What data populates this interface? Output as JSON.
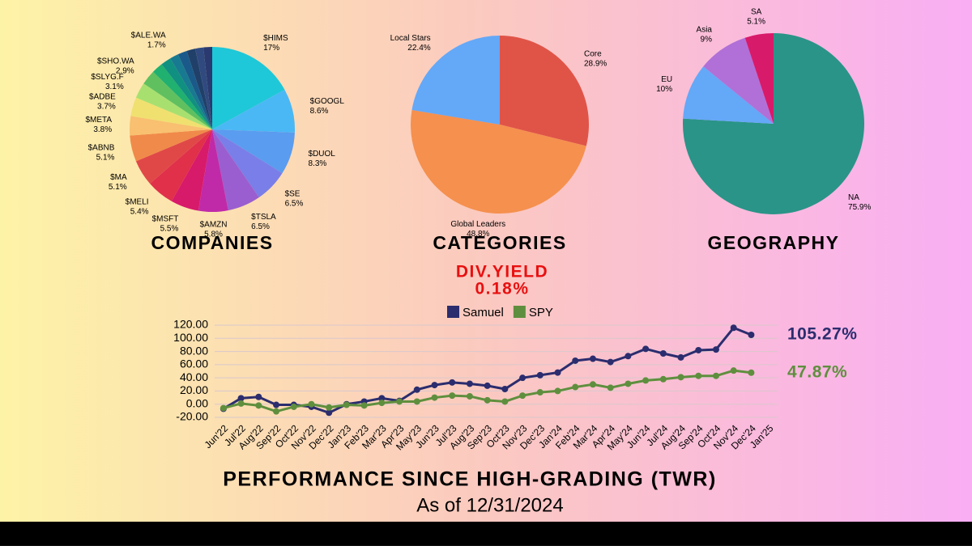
{
  "chart_data": [
    {
      "type": "pie",
      "title": "COMPANIES",
      "categories": [
        "$HIMS",
        "$GOOGL",
        "$DUOL",
        "$SE",
        "$TSLA",
        "$AMZN",
        "$MSFT",
        "$MELI",
        "$MA",
        "$ABNB",
        "$META",
        "$ADBE",
        "$SLYG.F",
        "$SHO.WA",
        null,
        null,
        "$ALE.WA",
        null,
        null,
        null,
        null
      ],
      "values": [
        17,
        8.6,
        8.3,
        6.5,
        6.5,
        5.8,
        5.5,
        5.4,
        5.1,
        5.1,
        3.8,
        3.7,
        3.1,
        2.9,
        2.2,
        2.0,
        1.7,
        1.8,
        1.7,
        1.6,
        1.7
      ],
      "value_labels": [
        "17%",
        "8.6%",
        "8.3%",
        "6.5%",
        "6.5%",
        "5.8%",
        "5.5%",
        "5.4%",
        "5.1%",
        "5.1%",
        "3.8%",
        "3.7%",
        "3.1%",
        "2.9%",
        null,
        null,
        "1.7%",
        null,
        null,
        null,
        null
      ],
      "colors": [
        "#1ec8d8",
        "#4ab8f5",
        "#5a9cf0",
        "#7a7ee8",
        "#9b5ed0",
        "#c02aa8",
        "#d81a6a",
        "#e0304a",
        "#e04848",
        "#f08a4a",
        "#f8c070",
        "#f0e070",
        "#a8e070",
        "#60c060",
        "#20b070",
        "#109080",
        "#187a90",
        "#1a5a8a",
        "#20406a",
        "#304a80",
        "#2a3a70"
      ]
    },
    {
      "type": "pie",
      "title": "CATEGORIES",
      "categories": [
        "Core",
        "Global Leaders",
        "Local Stars"
      ],
      "values": [
        28.9,
        48.8,
        22.4
      ],
      "value_labels": [
        "28.9%",
        "48.8%",
        "22.4%"
      ],
      "colors": [
        "#e05448",
        "#f5904e",
        "#64a8f8"
      ]
    },
    {
      "type": "pie",
      "title": "GEOGRAPHY",
      "categories": [
        "NA",
        "EU",
        "Asia",
        "SA"
      ],
      "values": [
        75.9,
        10,
        9,
        5.1
      ],
      "value_labels": [
        "75.9%",
        "10%",
        "9%",
        "5.1%"
      ],
      "colors": [
        "#2a9488",
        "#64a8f8",
        "#b070d8",
        "#d81a6a"
      ]
    },
    {
      "type": "line",
      "title": "PERFORMANCE SINCE HIGH-GRADING (TWR)",
      "subtitle": "As of 12/31/2024",
      "categories": [
        "Jun'22",
        "Jul'22",
        "Aug'22",
        "Sep'22",
        "Oct'22",
        "Nov'22",
        "Dec'22",
        "Jan'23",
        "Feb'23",
        "Mar'23",
        "Apr'23",
        "May'23",
        "Jun'23",
        "Jul'23",
        "Aug'23",
        "Sep'23",
        "Oct'23",
        "Nov'23",
        "Dec'23",
        "Jan'24",
        "Feb'24",
        "Mar'24",
        "Apr'24",
        "May'24",
        "Jun'24",
        "Jul'24",
        "Aug'24",
        "Sep'24",
        "Oct'24",
        "Nov'24",
        "Dec'24",
        "Jan'25"
      ],
      "series": [
        {
          "name": "Samuel",
          "color": "#2b2d6e",
          "values": [
            -7,
            9,
            11,
            -1,
            -1,
            -4,
            -13,
            0,
            4,
            9,
            5,
            22,
            29,
            33,
            31,
            28,
            23,
            40,
            44,
            48,
            66,
            69,
            64,
            73,
            84,
            77,
            71,
            82,
            83,
            116,
            105.27,
            null
          ],
          "value_labels": [
            null,
            null,
            null,
            null,
            null,
            null,
            null,
            null,
            null,
            null,
            null,
            null,
            null,
            null,
            null,
            null,
            null,
            null,
            null,
            null,
            null,
            null,
            null,
            null,
            null,
            null,
            null,
            null,
            null,
            null,
            "105.27%",
            null
          ]
        },
        {
          "name": "SPY",
          "color": "#5f8f3e",
          "values": [
            -6,
            1,
            -2,
            -11,
            -4,
            0,
            -5,
            -1,
            -2,
            2,
            4,
            4,
            10,
            13,
            12,
            6,
            4,
            13,
            18,
            20,
            26,
            30,
            25,
            31,
            36,
            38,
            41,
            43,
            43,
            51,
            47.87,
            null
          ],
          "value_labels": [
            null,
            null,
            null,
            null,
            null,
            null,
            null,
            null,
            null,
            null,
            null,
            null,
            null,
            null,
            null,
            null,
            null,
            null,
            null,
            null,
            null,
            null,
            null,
            null,
            null,
            null,
            null,
            null,
            null,
            null,
            "47.87%",
            null
          ]
        }
      ],
      "ylim": [
        -20,
        120
      ],
      "yticks": [
        {
          "value": -20,
          "label": "-20.00"
        },
        {
          "value": 0,
          "label": "0.00"
        },
        {
          "value": 20,
          "label": "20.00"
        },
        {
          "value": 40,
          "label": "40.00"
        },
        {
          "value": 60,
          "label": "60.00"
        },
        {
          "value": 80,
          "label": "80.00"
        },
        {
          "value": 100,
          "label": "100.00"
        },
        {
          "value": 120,
          "label": "120.00"
        }
      ],
      "grid": true,
      "legend": "top"
    }
  ],
  "div_yield": {
    "label": "DIV.YIELD",
    "value": "0.18%"
  }
}
